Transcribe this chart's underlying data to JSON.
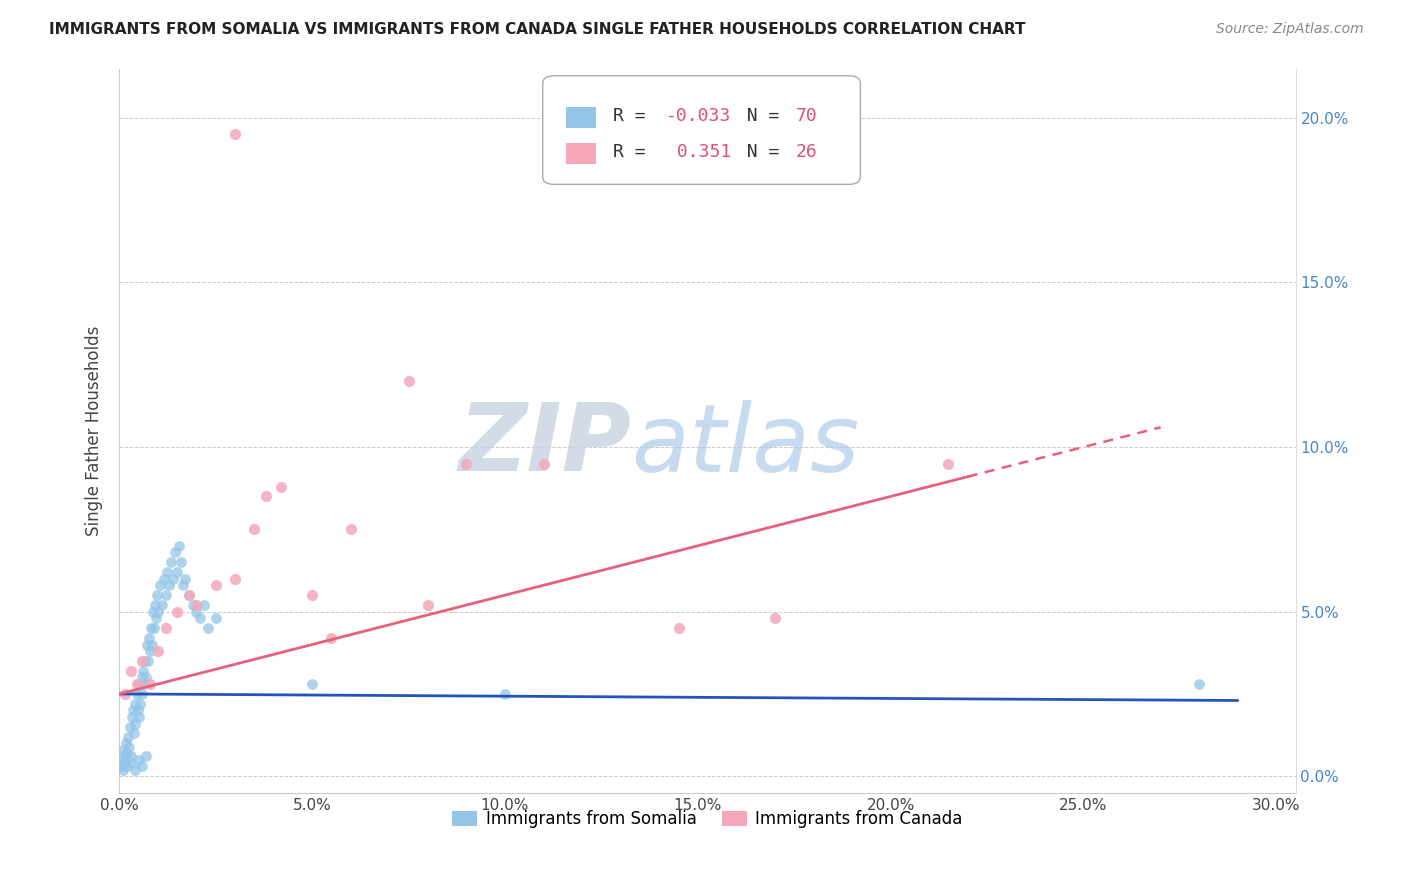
{
  "title": "IMMIGRANTS FROM SOMALIA VS IMMIGRANTS FROM CANADA SINGLE FATHER HOUSEHOLDS CORRELATION CHART",
  "source": "Source: ZipAtlas.com",
  "ylabel": "Single Father Households",
  "xlim": [
    0.0,
    30.5
  ],
  "ylim": [
    -0.5,
    21.5
  ],
  "x_tick_vals": [
    0,
    5,
    10,
    15,
    20,
    25,
    30
  ],
  "y_tick_vals": [
    0,
    5,
    10,
    15,
    20
  ],
  "somalia_color": "#92c5e8",
  "canada_color": "#f4a7b9",
  "somalia_line_color": "#2255bb",
  "canada_line_color": "#e8607a",
  "somalia_R": -0.033,
  "somalia_N": 70,
  "canada_R": 0.351,
  "canada_N": 26,
  "legend_label_somalia": "Immigrants from Somalia",
  "legend_label_canada": "Immigrants from Canada",
  "watermark_zip": "ZIP",
  "watermark_atlas": "atlas",
  "somalia_points": [
    [
      0.05,
      0.3
    ],
    [
      0.08,
      0.5
    ],
    [
      0.1,
      0.8
    ],
    [
      0.12,
      0.4
    ],
    [
      0.15,
      0.6
    ],
    [
      0.18,
      1.0
    ],
    [
      0.2,
      0.7
    ],
    [
      0.22,
      1.2
    ],
    [
      0.25,
      0.9
    ],
    [
      0.28,
      1.5
    ],
    [
      0.3,
      0.6
    ],
    [
      0.32,
      1.8
    ],
    [
      0.35,
      2.0
    ],
    [
      0.38,
      1.3
    ],
    [
      0.4,
      2.2
    ],
    [
      0.42,
      1.6
    ],
    [
      0.45,
      2.5
    ],
    [
      0.48,
      2.0
    ],
    [
      0.5,
      1.8
    ],
    [
      0.52,
      2.8
    ],
    [
      0.55,
      2.2
    ],
    [
      0.58,
      3.0
    ],
    [
      0.6,
      2.5
    ],
    [
      0.62,
      3.2
    ],
    [
      0.65,
      2.8
    ],
    [
      0.68,
      3.5
    ],
    [
      0.7,
      3.0
    ],
    [
      0.72,
      4.0
    ],
    [
      0.75,
      3.5
    ],
    [
      0.78,
      4.2
    ],
    [
      0.8,
      3.8
    ],
    [
      0.82,
      4.5
    ],
    [
      0.85,
      4.0
    ],
    [
      0.88,
      5.0
    ],
    [
      0.9,
      4.5
    ],
    [
      0.92,
      5.2
    ],
    [
      0.95,
      4.8
    ],
    [
      0.98,
      5.5
    ],
    [
      1.0,
      5.0
    ],
    [
      1.05,
      5.8
    ],
    [
      1.1,
      5.2
    ],
    [
      1.15,
      6.0
    ],
    [
      1.2,
      5.5
    ],
    [
      1.25,
      6.2
    ],
    [
      1.3,
      5.8
    ],
    [
      1.35,
      6.5
    ],
    [
      1.4,
      6.0
    ],
    [
      1.45,
      6.8
    ],
    [
      1.5,
      6.2
    ],
    [
      1.55,
      7.0
    ],
    [
      1.6,
      6.5
    ],
    [
      1.65,
      5.8
    ],
    [
      1.7,
      6.0
    ],
    [
      1.8,
      5.5
    ],
    [
      1.9,
      5.2
    ],
    [
      2.0,
      5.0
    ],
    [
      2.1,
      4.8
    ],
    [
      2.2,
      5.2
    ],
    [
      2.3,
      4.5
    ],
    [
      2.5,
      4.8
    ],
    [
      0.1,
      0.2
    ],
    [
      0.2,
      0.3
    ],
    [
      0.3,
      0.4
    ],
    [
      0.4,
      0.2
    ],
    [
      0.5,
      0.5
    ],
    [
      0.6,
      0.3
    ],
    [
      0.7,
      0.6
    ],
    [
      5.0,
      2.8
    ],
    [
      10.0,
      2.5
    ],
    [
      28.0,
      2.8
    ]
  ],
  "canada_points": [
    [
      0.15,
      2.5
    ],
    [
      0.3,
      3.2
    ],
    [
      0.45,
      2.8
    ],
    [
      0.6,
      3.5
    ],
    [
      0.8,
      2.8
    ],
    [
      1.0,
      3.8
    ],
    [
      1.2,
      4.5
    ],
    [
      1.5,
      5.0
    ],
    [
      1.8,
      5.5
    ],
    [
      2.0,
      5.2
    ],
    [
      2.5,
      5.8
    ],
    [
      3.0,
      6.0
    ],
    [
      3.5,
      7.5
    ],
    [
      3.8,
      8.5
    ],
    [
      4.2,
      8.8
    ],
    [
      5.0,
      5.5
    ],
    [
      6.0,
      7.5
    ],
    [
      7.5,
      12.0
    ],
    [
      9.0,
      9.5
    ],
    [
      11.0,
      9.5
    ],
    [
      14.5,
      4.5
    ],
    [
      17.0,
      4.8
    ],
    [
      21.5,
      9.5
    ],
    [
      5.5,
      4.2
    ],
    [
      8.0,
      5.2
    ],
    [
      3.0,
      19.5
    ]
  ]
}
